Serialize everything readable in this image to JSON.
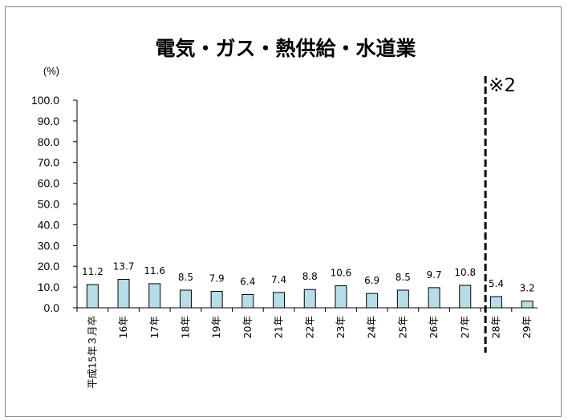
{
  "chart_data": {
    "type": "bar",
    "title": "電気・ガス・熱供給・水道業",
    "ylabel": "(%)",
    "ylim": [
      0,
      100
    ],
    "yticks": [
      "0.0",
      "10.0",
      "20.0",
      "30.0",
      "40.0",
      "50.0",
      "60.0",
      "70.0",
      "80.0",
      "90.0",
      "100.0"
    ],
    "categories": [
      "平成15年３月卒",
      "16年",
      "17年",
      "18年",
      "19年",
      "20年",
      "21年",
      "22年",
      "23年",
      "24年",
      "25年",
      "26年",
      "27年",
      "28年",
      "29年"
    ],
    "values": [
      11.2,
      13.7,
      11.6,
      8.5,
      7.9,
      6.4,
      7.4,
      8.8,
      10.6,
      6.9,
      8.5,
      9.7,
      10.8,
      5.4,
      3.2
    ],
    "value_labels": [
      "11.2",
      "13.7",
      "11.6",
      "8.5",
      "7.9",
      "6.4",
      "7.4",
      "8.8",
      "10.6",
      "6.9",
      "8.5",
      "9.7",
      "10.8",
      "5.4",
      "3.2"
    ],
    "annotation": {
      "text": "※2",
      "break_after_category": "27年"
    },
    "bar_color": "#b7dde8",
    "grid": false,
    "legend": "none"
  }
}
